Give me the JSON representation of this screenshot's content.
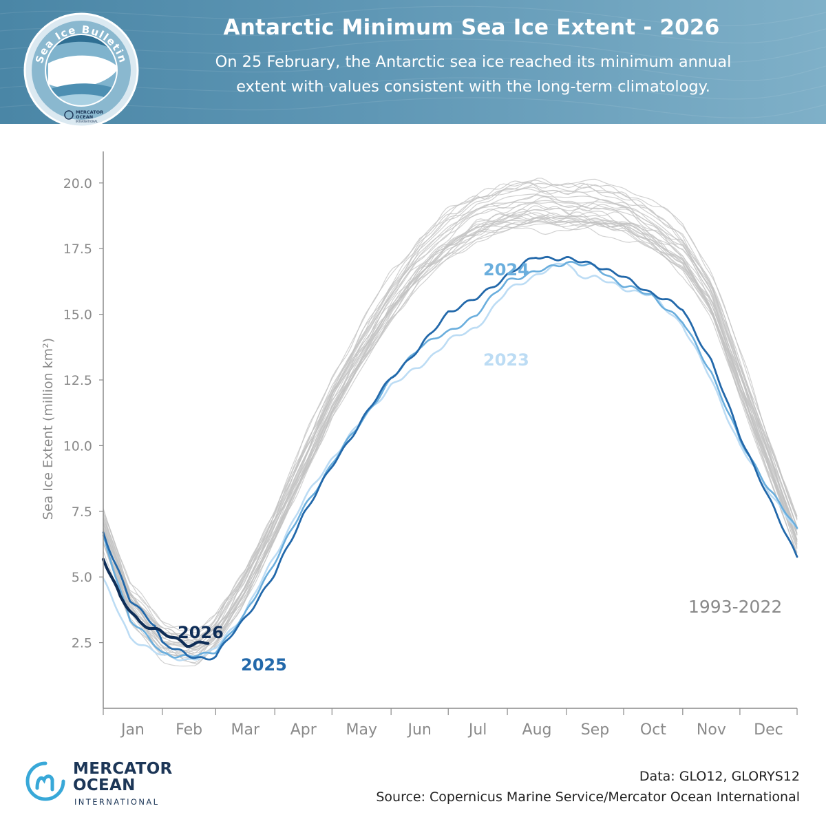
{
  "header": {
    "title": "Antarctic Minimum Sea Ice Extent - 2026",
    "subtitle_line1": "On 25 February, the Antarctic sea ice reached its minimum annual",
    "subtitle_line2": "extent with values consistent with the long-term climatology."
  },
  "badge": {
    "ring_text": "Sea Ice Bulletin",
    "logo_line1": "MERCATOR",
    "logo_line2": "OCEAN",
    "logo_line3": "INTERNATIONAL"
  },
  "footer": {
    "logo_line1": "MERCATOR",
    "logo_line2": "OCEAN",
    "logo_sub": "INTERNATIONAL",
    "data_credit": "Data: GLO12, GLORYS12",
    "source_credit": "Source: Copernicus Marine Service/Mercator Ocean International"
  },
  "colors": {
    "background_band": "#5f97b5",
    "climatology": "#c2c2c2",
    "y2023": "#bcdcf4",
    "y2024": "#6aaedd",
    "y2025": "#2268aa",
    "y2026": "#0e2d57",
    "axis": "#8a8a8a",
    "brand": "#1c3657"
  },
  "chart_data": {
    "type": "line",
    "title": "",
    "xlabel": "",
    "ylabel": "Sea Ice Extent (million km²)",
    "x_ticks": [
      "Jan",
      "Feb",
      "Mar",
      "Apr",
      "May",
      "Jun",
      "Jul",
      "Aug",
      "Sep",
      "Oct",
      "Nov",
      "Dec"
    ],
    "x_unit": "day of year",
    "xlim": [
      1,
      365
    ],
    "ylim": [
      0,
      21.2
    ],
    "y_ticks": [
      2.5,
      5.0,
      7.5,
      10.0,
      12.5,
      15.0,
      17.5,
      20.0
    ],
    "y_tick_labels": [
      "2.5",
      "5.0",
      "7.5",
      "10.0",
      "12.5",
      "15.0",
      "17.5",
      "20.0"
    ],
    "grid": false,
    "legend": "inline labels",
    "climatology": {
      "label": "1993-2022",
      "mean": {
        "x": [
          1,
          15,
          32,
          50,
          60,
          75,
          91,
          106,
          121,
          136,
          152,
          167,
          182,
          197,
          213,
          228,
          244,
          259,
          274,
          289,
          305,
          320,
          335,
          350,
          365
        ],
        "y": [
          6.8,
          4.0,
          2.5,
          2.2,
          2.8,
          4.5,
          6.8,
          9.2,
          11.6,
          13.5,
          15.4,
          16.8,
          17.8,
          18.5,
          18.8,
          19.0,
          18.8,
          18.8,
          18.6,
          18.0,
          17.2,
          15.5,
          12.5,
          9.5,
          6.5
        ]
      }
    },
    "series": [
      {
        "name": "2023",
        "x": [
          1,
          15,
          32,
          45,
          55,
          60,
          75,
          91,
          106,
          121,
          136,
          152,
          167,
          182,
          197,
          213,
          228,
          244,
          250,
          259,
          274,
          289,
          305,
          320,
          335,
          350,
          365
        ],
        "y": [
          4.9,
          2.7,
          2.0,
          1.85,
          2.0,
          2.3,
          3.6,
          5.8,
          7.9,
          9.5,
          10.9,
          12.3,
          13.0,
          14.0,
          14.5,
          15.9,
          16.5,
          17.0,
          16.5,
          16.4,
          16.0,
          15.7,
          14.6,
          12.5,
          10.0,
          8.3,
          6.8
        ]
      },
      {
        "name": "2024",
        "x": [
          1,
          15,
          32,
          45,
          55,
          60,
          75,
          91,
          106,
          121,
          136,
          152,
          167,
          182,
          197,
          213,
          228,
          244,
          259,
          274,
          289,
          305,
          320,
          335,
          350,
          365
        ],
        "y": [
          6.5,
          3.4,
          2.1,
          1.95,
          2.05,
          2.2,
          3.5,
          5.6,
          7.6,
          9.3,
          10.9,
          12.5,
          13.8,
          14.3,
          15.0,
          16.3,
          16.6,
          17.0,
          16.8,
          16.1,
          15.7,
          14.7,
          12.8,
          10.2,
          8.4,
          6.8
        ]
      },
      {
        "name": "2025",
        "x": [
          1,
          15,
          28,
          32,
          45,
          55,
          60,
          75,
          91,
          106,
          121,
          136,
          152,
          167,
          182,
          197,
          213,
          228,
          244,
          259,
          274,
          289,
          305,
          320,
          335,
          350,
          365
        ],
        "y": [
          6.7,
          4.1,
          3.2,
          2.5,
          2.0,
          1.9,
          2.0,
          3.4,
          5.1,
          7.4,
          9.2,
          10.9,
          12.6,
          13.7,
          15.1,
          15.6,
          16.5,
          17.2,
          17.1,
          16.9,
          16.4,
          15.8,
          15.2,
          13.2,
          10.4,
          8.0,
          5.8
        ]
      },
      {
        "name": "2026",
        "x": [
          1,
          10,
          20,
          32,
          45,
          56
        ],
        "y": [
          5.7,
          4.2,
          3.3,
          2.85,
          2.45,
          2.5
        ]
      }
    ]
  }
}
